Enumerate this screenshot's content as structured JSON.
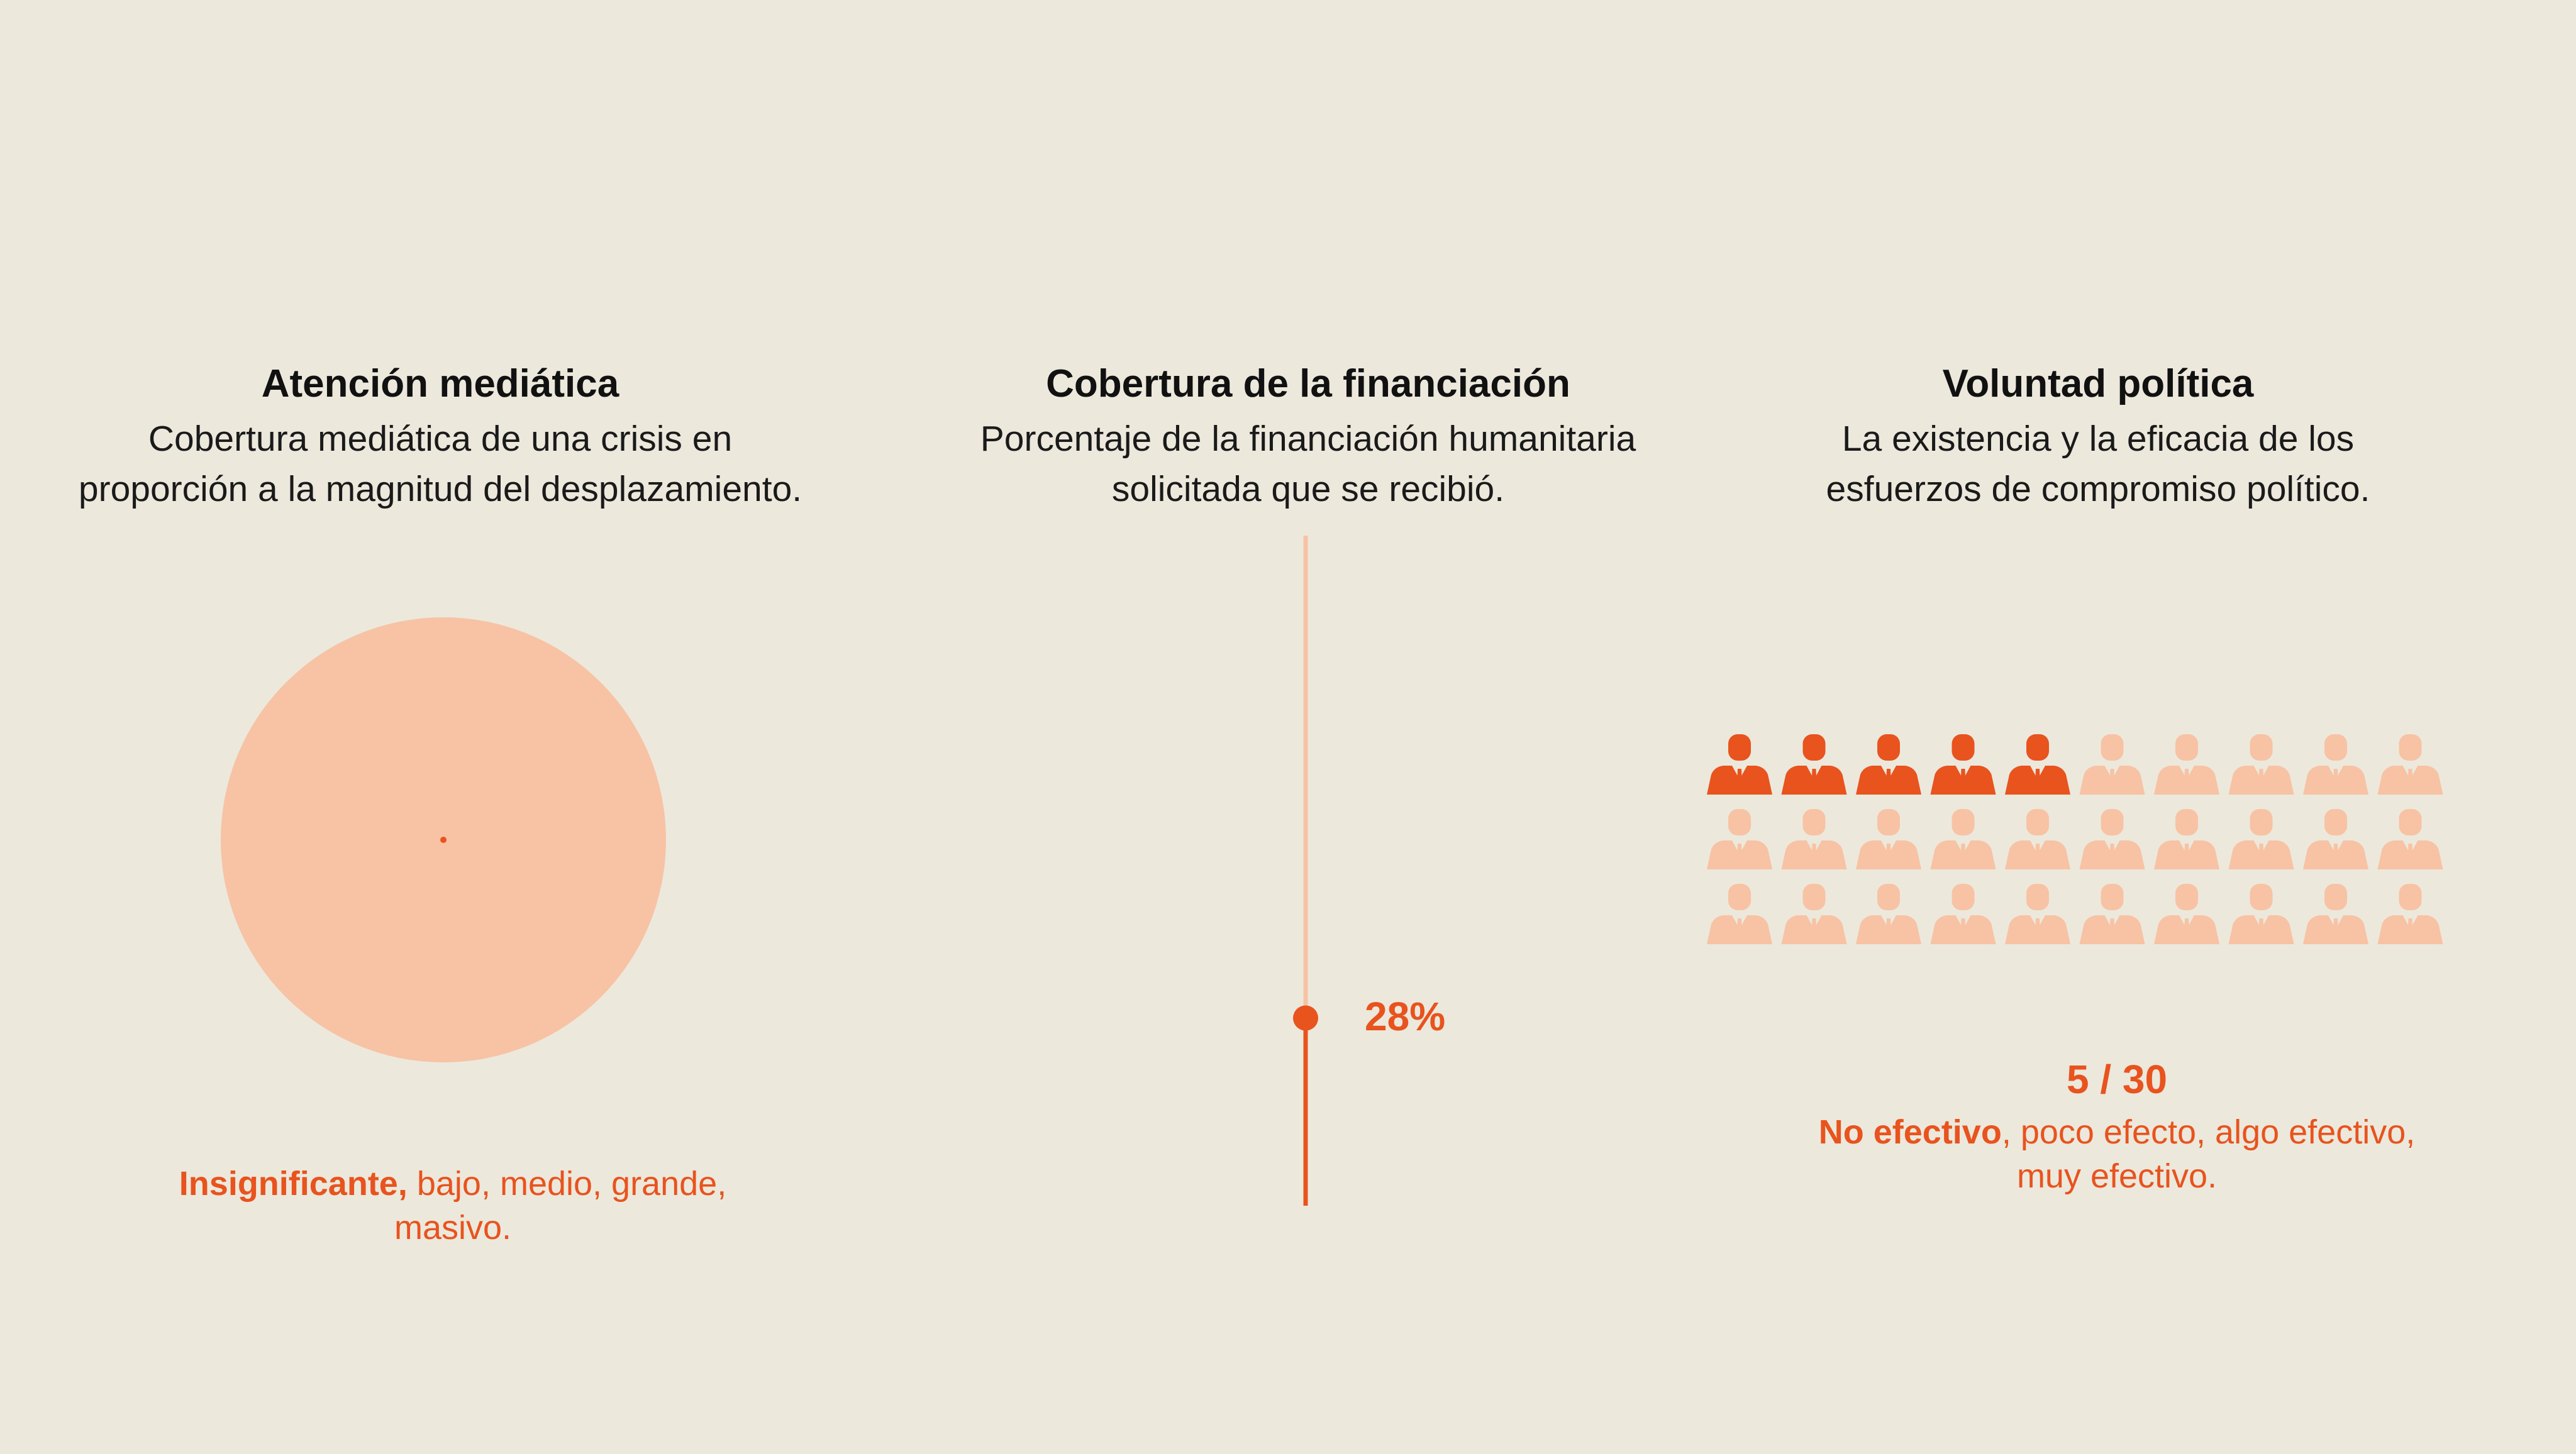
{
  "colors": {
    "background": "#ECE8DC",
    "accent": "#E8531E",
    "light": "#F7C3A4",
    "text": "#111111"
  },
  "media": {
    "title": "Atención mediática",
    "desc_lines": [
      "Cobertura mediática de una crisis en",
      "proporción a la magnitud del desplazamiento."
    ],
    "scale_strong": "Insignificante,",
    "scale_rest_1": " bajo, medio, grande,",
    "scale_line_2": "masivo."
  },
  "funding": {
    "title": "Cobertura de la financiación",
    "desc_lines": [
      "Porcentaje de la financiación humanitaria",
      "solicitada que se recibió."
    ],
    "value_label": "28%"
  },
  "political": {
    "title": "Voluntad política",
    "desc_lines": [
      "La existencia y la eficacia de los",
      "esfuerzos de compromiso político."
    ],
    "value_label": "5 / 30",
    "scale_strong": "No efectivo",
    "scale_rest_1": ", poco efecto, algo efectivo,",
    "scale_line_2": "muy efectivo."
  },
  "chart_data": [
    {
      "type": "bubble",
      "level": "Insignificante",
      "levels": [
        "Insignificante",
        "bajo",
        "medio",
        "grande",
        "masivo"
      ]
    },
    {
      "type": "progress",
      "value": 28,
      "max": 100,
      "unit": "%"
    },
    {
      "type": "pictogram",
      "value": 5,
      "total": 30,
      "rows": 3,
      "columns": 10,
      "levels": [
        "No efectivo",
        "poco efecto",
        "algo efectivo",
        "muy efectivo"
      ]
    }
  ]
}
